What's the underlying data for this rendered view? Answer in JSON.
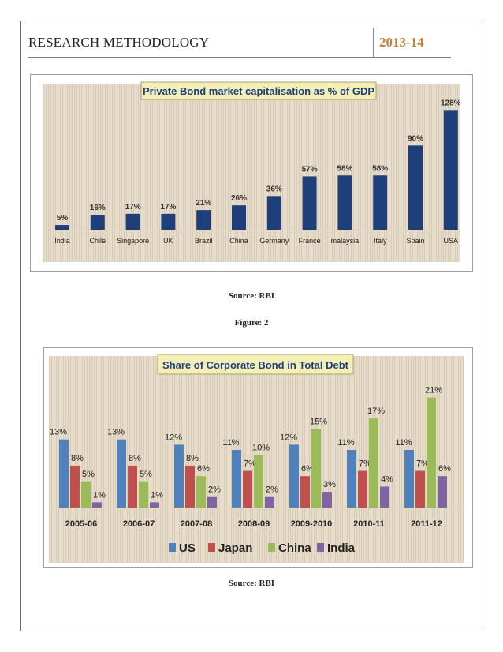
{
  "header": {
    "left_title": "RESEARCH METHODOLOGY",
    "right_title": "2013-14"
  },
  "captions": {
    "source_1": "Source: RBI",
    "figure_2": "Figure: 2",
    "source_2": "Source: RBI"
  },
  "chart_data": [
    {
      "type": "bar",
      "title": "Private Bond market capitalisation as % of GDP",
      "categories": [
        "India",
        "Chile",
        "Singapore",
        "UK",
        "Brazil",
        "China",
        "Germany",
        "France",
        "malaysia",
        "Italy",
        "Spain",
        "USA"
      ],
      "values": [
        5,
        16,
        17,
        17,
        21,
        26,
        36,
        57,
        58,
        58,
        90,
        128
      ],
      "labels": [
        "5%",
        "16%",
        "17%",
        "17%",
        "21%",
        "26%",
        "36%",
        "57%",
        "58%",
        "58%",
        "90%",
        "128%"
      ],
      "color": "#1f3f7a",
      "ylim": [
        0,
        135
      ]
    },
    {
      "type": "bar",
      "title": "Share of Corporate Bond in Total Debt",
      "categories": [
        "2005-06",
        "2006-07",
        "2007-08",
        "2008-09",
        "2009-2010",
        "2010-11",
        "2011-12"
      ],
      "series": [
        {
          "name": "US",
          "color": "#4f81bd",
          "values": [
            13,
            13,
            12,
            11,
            12,
            11,
            11
          ],
          "labels": [
            "13%",
            "13%",
            "12%",
            "11%",
            "12%",
            "11%",
            "11%"
          ]
        },
        {
          "name": "Japan",
          "color": "#c0504d",
          "values": [
            8,
            8,
            8,
            7,
            6,
            7,
            7
          ],
          "labels": [
            "8%",
            "8%",
            "8%",
            "7%",
            "6%",
            "7%",
            "7%"
          ]
        },
        {
          "name": "China",
          "color": "#9bbb59",
          "values": [
            5,
            5,
            6,
            10,
            15,
            17,
            21
          ],
          "labels": [
            "5%",
            "5%",
            "6%",
            "10%",
            "15%",
            "17%",
            "21%"
          ]
        },
        {
          "name": "India",
          "color": "#8064a2",
          "values": [
            1,
            1,
            2,
            2,
            3,
            4,
            6
          ],
          "labels": [
            "1%",
            "1%",
            "2%",
            "2%",
            "3%",
            "4%",
            "6%"
          ]
        }
      ],
      "legend": "bottom",
      "ylim": [
        0,
        22
      ]
    }
  ]
}
